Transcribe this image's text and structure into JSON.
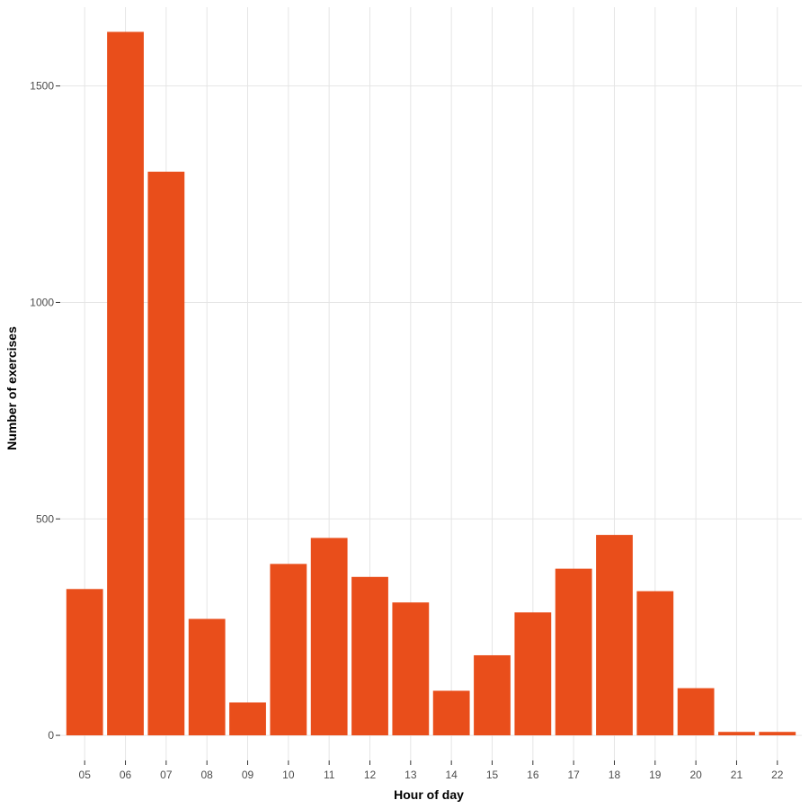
{
  "chart_data": {
    "type": "bar",
    "title": "",
    "xlabel": "Hour of day",
    "ylabel": "Number of exercises",
    "categories": [
      "05",
      "06",
      "07",
      "08",
      "09",
      "10",
      "11",
      "12",
      "13",
      "14",
      "15",
      "16",
      "17",
      "18",
      "19",
      "20",
      "21",
      "22"
    ],
    "values": [
      338,
      1625,
      1302,
      269,
      76,
      396,
      456,
      366,
      307,
      103,
      185,
      284,
      385,
      463,
      333,
      109,
      8,
      8
    ],
    "ylim": [
      -58,
      1682
    ],
    "yticks": [
      0,
      500,
      1000,
      1500
    ],
    "ytick_labels": [
      "0",
      "500",
      "1000",
      "1500"
    ],
    "grid": true,
    "bar_color": "#E94E1B",
    "grid_color": "#E5E5E5"
  }
}
